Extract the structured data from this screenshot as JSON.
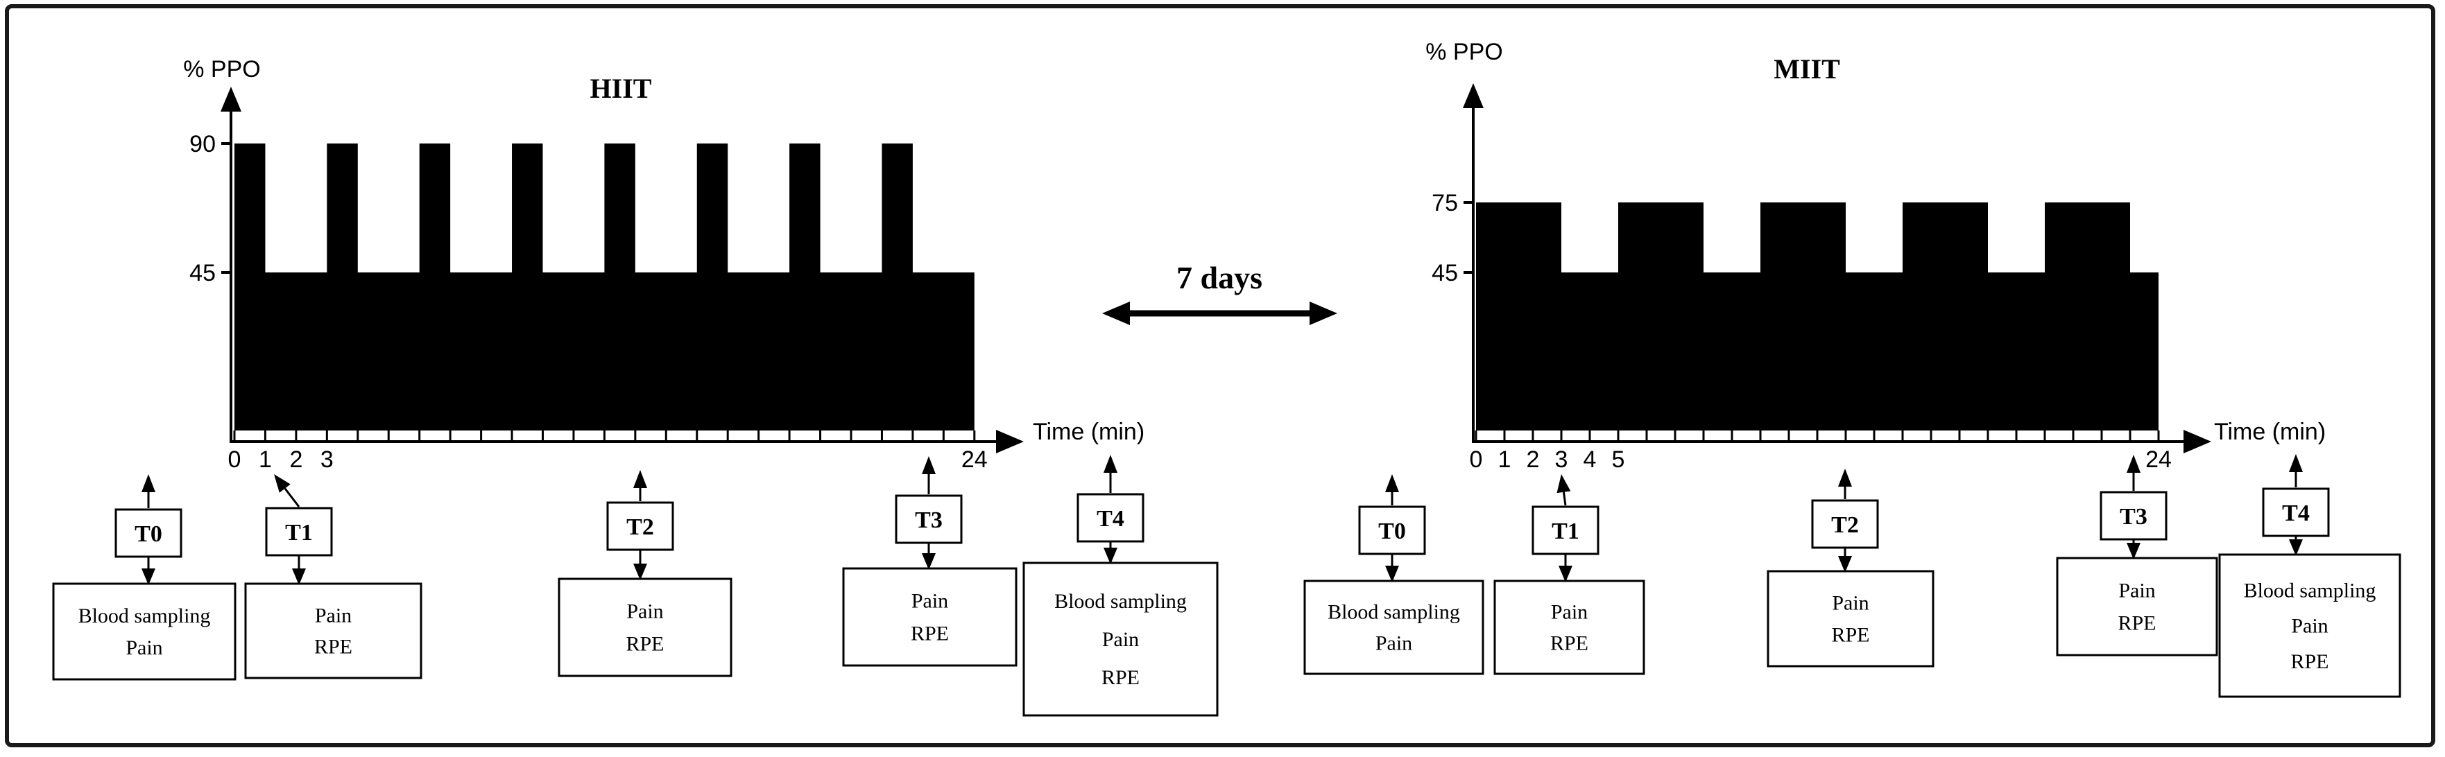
{
  "figure": {
    "background": "#ffffff",
    "border_color": "#1a1a1a",
    "ink_color": "#000000"
  },
  "separator": {
    "label": "7 days"
  },
  "chart_data": [
    {
      "id": "hiit",
      "type": "area",
      "title": "HIIT",
      "ylabel": "% PPO",
      "xlabel": "Time (min)",
      "xlim": [
        0,
        24
      ],
      "ylim": [
        0,
        100
      ],
      "y_ticks": [
        90,
        45
      ],
      "x_ticks_labeled": [
        0,
        1,
        2,
        3,
        24
      ],
      "x_minor_tick_step": 1,
      "grid": false,
      "fill_color": "#000000",
      "segments_min_pct": [
        [
          0,
          1,
          90
        ],
        [
          1,
          3,
          45
        ],
        [
          3,
          4,
          90
        ],
        [
          4,
          6,
          45
        ],
        [
          6,
          7,
          90
        ],
        [
          7,
          9,
          45
        ],
        [
          9,
          10,
          90
        ],
        [
          10,
          12,
          45
        ],
        [
          12,
          13,
          90
        ],
        [
          13,
          15,
          45
        ],
        [
          15,
          16,
          90
        ],
        [
          16,
          18,
          45
        ],
        [
          18,
          19,
          90
        ],
        [
          19,
          21,
          45
        ],
        [
          21,
          22,
          90
        ],
        [
          22,
          24,
          45
        ]
      ]
    },
    {
      "id": "miit",
      "type": "area",
      "title": "MIIT",
      "ylabel": "% PPO",
      "xlabel": "Time (min)",
      "xlim": [
        0,
        24
      ],
      "ylim": [
        0,
        100
      ],
      "y_ticks": [
        75,
        45
      ],
      "x_ticks_labeled": [
        0,
        1,
        2,
        3,
        4,
        5,
        24
      ],
      "x_minor_tick_step": 1,
      "grid": false,
      "fill_color": "#000000",
      "segments_min_pct": [
        [
          0,
          3,
          75
        ],
        [
          3,
          5,
          45
        ],
        [
          5,
          8,
          75
        ],
        [
          8,
          10,
          45
        ],
        [
          10,
          13,
          75
        ],
        [
          13,
          15,
          45
        ],
        [
          15,
          18,
          75
        ],
        [
          18,
          20,
          45
        ],
        [
          20,
          23,
          75
        ],
        [
          23,
          24,
          45
        ]
      ]
    }
  ],
  "timepoints": {
    "hiit": [
      {
        "label": "T0",
        "measures": [
          "Blood sampling",
          "Pain"
        ]
      },
      {
        "label": "T1",
        "measures": [
          "Pain",
          "RPE"
        ]
      },
      {
        "label": "T2",
        "measures": [
          "Pain",
          "RPE"
        ]
      },
      {
        "label": "T3",
        "measures": [
          "Pain",
          "RPE"
        ]
      },
      {
        "label": "T4",
        "measures": [
          "Blood sampling",
          "Pain",
          "RPE"
        ]
      }
    ],
    "miit": [
      {
        "label": "T0",
        "measures": [
          "Blood sampling",
          "Pain"
        ]
      },
      {
        "label": "T1",
        "measures": [
          "Pain",
          "RPE"
        ]
      },
      {
        "label": "T2",
        "measures": [
          "Pain",
          "RPE"
        ]
      },
      {
        "label": "T3",
        "measures": [
          "Pain",
          "RPE"
        ]
      },
      {
        "label": "T4",
        "measures": [
          "Blood sampling",
          "Pain",
          "RPE"
        ]
      }
    ]
  }
}
